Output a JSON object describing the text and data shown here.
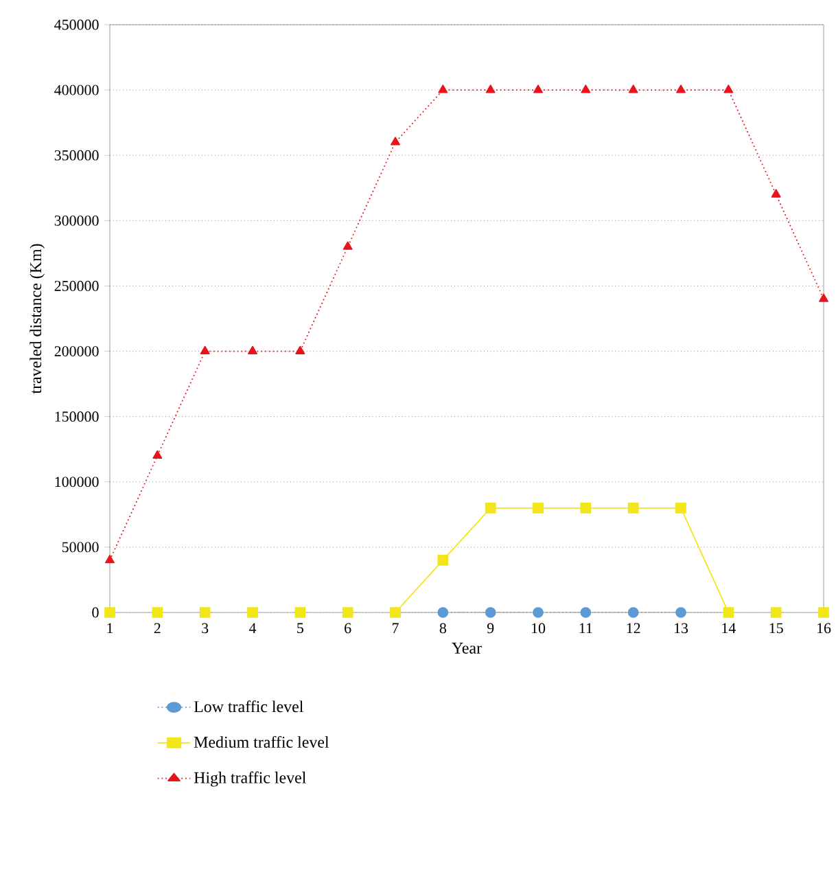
{
  "chart_data": {
    "type": "line",
    "xlabel": "Year",
    "ylabel": "traveled distance (Km)",
    "x": [
      1,
      2,
      3,
      4,
      5,
      6,
      7,
      8,
      9,
      10,
      11,
      12,
      13,
      14,
      15,
      16
    ],
    "xlim": [
      1,
      16
    ],
    "xticks": [
      1,
      2,
      3,
      4,
      5,
      6,
      7,
      8,
      9,
      10,
      11,
      12,
      13,
      14,
      15,
      16
    ],
    "ylim": [
      0,
      450000
    ],
    "yticks": [
      0,
      50000,
      100000,
      150000,
      200000,
      250000,
      300000,
      350000,
      400000,
      450000
    ],
    "grid": "y",
    "legend": "bottom",
    "series": [
      {
        "name": "Low traffic level",
        "color": "#5b9bd5",
        "marker": "circle",
        "line_style": "dotted",
        "values": [
          null,
          null,
          null,
          null,
          null,
          null,
          null,
          0,
          0,
          0,
          0,
          0,
          0,
          null,
          null,
          null
        ]
      },
      {
        "name": "Medium traffic level",
        "color": "#f2e51a",
        "marker": "square",
        "line_style": "solid",
        "values": [
          0,
          0,
          0,
          0,
          0,
          0,
          0,
          40000,
          80000,
          80000,
          80000,
          80000,
          80000,
          0,
          0,
          0
        ]
      },
      {
        "name": "High traffic level",
        "color": "#e8141c",
        "marker": "triangle",
        "line_style": "dotted",
        "values": [
          40000,
          120000,
          200000,
          200000,
          200000,
          280000,
          360000,
          400000,
          400000,
          400000,
          400000,
          400000,
          400000,
          400000,
          320000,
          240000
        ]
      }
    ]
  }
}
